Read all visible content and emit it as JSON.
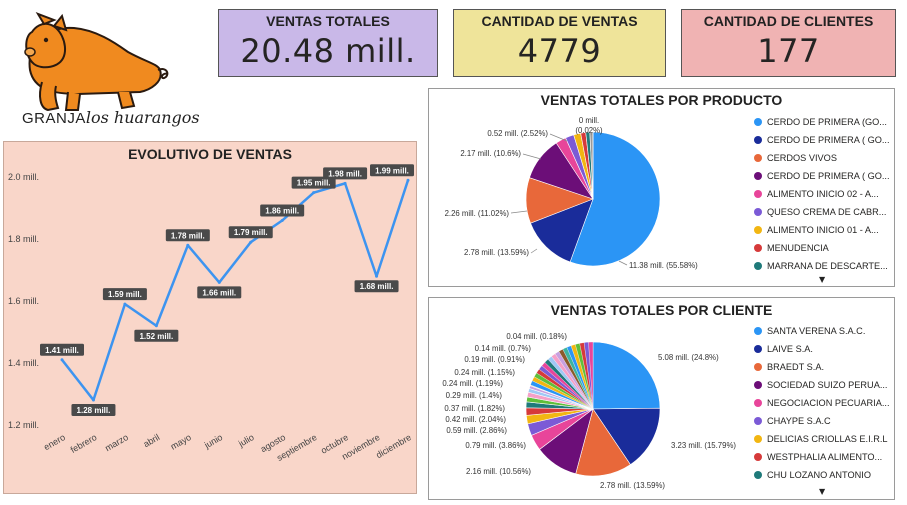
{
  "logo": {
    "text_part1": "GRANJA",
    "text_part2": "los huarangos",
    "colors": {
      "pig": "#f08a1f",
      "outline": "#2a1a10"
    }
  },
  "kpis": {
    "ventas_totales": {
      "title": "VENTAS TOTALES",
      "value": "20.48 mill.",
      "color": "#c9b8e8"
    },
    "cantidad_ventas": {
      "title": "CANTIDAD DE VENTAS",
      "value": "4779",
      "color": "#efe49a"
    },
    "cantidad_clientes": {
      "title": "CANTIDAD DE CLIENTES",
      "value": "177",
      "color": "#f0b3b3"
    }
  },
  "line_panel": {
    "background": "#f9d6c9",
    "line_color": "#3d94f0"
  },
  "pie_producto": {
    "title": "VENTAS TOTALES POR PRODUCTO",
    "legend": [
      "CERDO DE PRIMERA (GO...",
      "CERDO DE PRIMERA ( GO...",
      "CERDOS   VIVOS",
      "CERDO DE PRIMERA ( GO...",
      "ALIMENTO INICIO 02 - A...",
      "QUESO CREMA DE CABR...",
      "ALIMENTO INICIO 01 - A...",
      "MENUDENCIA",
      "MARRANA DE DESCARTE..."
    ],
    "more_icon": "chevron-down-icon"
  },
  "pie_cliente": {
    "title": "VENTAS TOTALES POR CLIENTE",
    "legend": [
      "SANTA VERENA S.A.C.",
      "LAIVE S.A.",
      "BRAEDT S.A.",
      "SOCIEDAD SUIZO PERUA...",
      "NEGOCIACION PECUARIA...",
      "CHAYPE  S.A.C",
      "DELICIAS CRIOLLAS E.I.R.L",
      "WESTPHALIA ALIMENTO...",
      "CHU LOZANO ANTONIO"
    ],
    "more_icon": "chevron-down-icon"
  },
  "chart_data": [
    {
      "type": "line",
      "title": "EVOLUTIVO DE VENTAS",
      "categories": [
        "enero",
        "febrero",
        "marzo",
        "abril",
        "mayo",
        "junio",
        "julio",
        "agosto",
        "septiembre",
        "octubre",
        "noviembre",
        "diciembre"
      ],
      "values": [
        1.41,
        1.28,
        1.59,
        1.52,
        1.78,
        1.66,
        1.79,
        1.86,
        1.95,
        1.98,
        1.68,
        1.99
      ],
      "data_labels": [
        "1.41 mill.",
        "1.28 mill.",
        "1.59 mill.",
        "1.52 mill.",
        "1.78 mill.",
        "1.66 mill.",
        "1.79 mill.",
        "1.86 mill.",
        "1.95 mill.",
        "1.98 mill.",
        "1.68 mill.",
        "1.99 mill."
      ],
      "y_ticks": [
        "1.2 mill.",
        "1.4 mill.",
        "1.6 mill.",
        "1.8 mill.",
        "2.0 mill."
      ],
      "y_tick_values": [
        1.2,
        1.4,
        1.6,
        1.8,
        2.0
      ],
      "ylim": [
        1.18,
        2.02
      ],
      "grid": false
    },
    {
      "type": "pie",
      "title": "VENTAS TOTALES POR PRODUCTO",
      "slices": [
        {
          "name": "CERDO DE PRIMERA (GO...",
          "value": 11.38,
          "label": "11.38 mill. (55.58%)",
          "color": "#2b95f5"
        },
        {
          "name": "CERDO DE PRIMERA ( GO...",
          "value": 2.78,
          "label": "2.78 mill. (13.59%)",
          "color": "#1a2c9a"
        },
        {
          "name": "CERDOS   VIVOS",
          "value": 2.26,
          "label": "2.26 mill. (11.02%)",
          "color": "#e8683a"
        },
        {
          "name": "CERDO DE PRIMERA ( GO...",
          "value": 2.17,
          "label": "2.17 mill. (10.6%)",
          "color": "#6c0e78"
        },
        {
          "name": "ALIMENTO INICIO 02 - A...",
          "value": 0.52,
          "label": "0.52 mill. (2.52%)",
          "color": "#e8459a"
        },
        {
          "name": "QUESO CREMA DE CABR...",
          "value": 0.42,
          "label": "",
          "color": "#7b5ad6"
        },
        {
          "name": "ALIMENTO INICIO 01 - A...",
          "value": 0.35,
          "label": "",
          "color": "#f2b612"
        },
        {
          "name": "MENUDENCIA",
          "value": 0.25,
          "label": "",
          "color": "#d63a3a"
        },
        {
          "name": "MARRANA DE DESCARTE...",
          "value": 0.2,
          "label": "",
          "color": "#1f7a7a"
        },
        {
          "name": "",
          "value": 0.15,
          "label": "",
          "color": "#9a9a9a"
        },
        {
          "name": "",
          "value": 0.004,
          "label": "0 mill. (0.02%)",
          "color": "#5a3d2b"
        }
      ]
    },
    {
      "type": "pie",
      "title": "VENTAS TOTALES POR CLIENTE",
      "slices": [
        {
          "name": "SANTA VERENA S.A.C.",
          "value": 5.08,
          "label": "5.08 mill. (24.8%)",
          "color": "#2b95f5"
        },
        {
          "name": "LAIVE S.A.",
          "value": 3.23,
          "label": "3.23 mill. (15.79%)",
          "color": "#1a2c9a"
        },
        {
          "name": "BRAEDT S.A.",
          "value": 2.78,
          "label": "2.78 mill. (13.59%)",
          "color": "#e8683a"
        },
        {
          "name": "SOCIEDAD SUIZO PERUA...",
          "value": 2.16,
          "label": "2.16 mill. (10.56%)",
          "color": "#6c0e78"
        },
        {
          "name": "NEGOCIACION PECUARIA...",
          "value": 0.79,
          "label": "0.79 mill. (3.86%)",
          "color": "#e8459a"
        },
        {
          "name": "CHAYPE  S.A.C",
          "value": 0.59,
          "label": "0.59 mill. (2.86%)",
          "color": "#7b5ad6"
        },
        {
          "name": "DELICIAS CRIOLLAS E.I.R.L",
          "value": 0.42,
          "label": "0.42 mill. (2.04%)",
          "color": "#f2b612"
        },
        {
          "name": "WESTPHALIA ALIMENTO...",
          "value": 0.37,
          "label": "0.37 mill. (1.82%)",
          "color": "#d63a3a"
        },
        {
          "name": "CHU LOZANO ANTONIO",
          "value": 0.29,
          "label": "0.29 mill. (1.4%)",
          "color": "#1f7a7a"
        },
        {
          "name": "",
          "value": 0.24,
          "label": "0.24 mill. (1.19%)",
          "color": "#5fbf3a"
        },
        {
          "name": "",
          "value": 0.24,
          "label": "0.24 mill. (1.15%)",
          "color": "#f5a0c8"
        },
        {
          "name": "",
          "value": 0.19,
          "label": "0.19 mill. (0.91%)",
          "color": "#a0c8f5"
        },
        {
          "name": "",
          "value": 0.14,
          "label": "0.14 mill. (0.7%)",
          "color": "#c8a0e0"
        },
        {
          "name": "",
          "value": 0.04,
          "label": "0.04 mill. (0.18%)",
          "color": "#d4c27a"
        },
        {
          "name": "",
          "value": 3.92,
          "label": "",
          "color": "multi"
        }
      ]
    }
  ]
}
